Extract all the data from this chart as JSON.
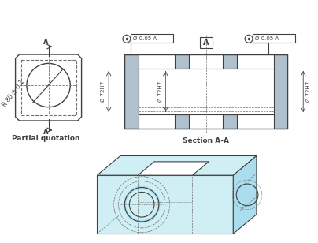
{
  "bg_color": "#ffffff",
  "line_color": "#404040",
  "dashed_color": "#707070",
  "cyan_color": "#aaddee",
  "cyan_fill": "#d0eff5",
  "gray_fill": "#b0c0cc",
  "title": "Partial quotation",
  "section_label": "Section A-A",
  "dim1": "Ø 0.05 A",
  "dim2": "Ø 72H7",
  "radius_label": "R 80 ± 0.1",
  "label_A": "A"
}
